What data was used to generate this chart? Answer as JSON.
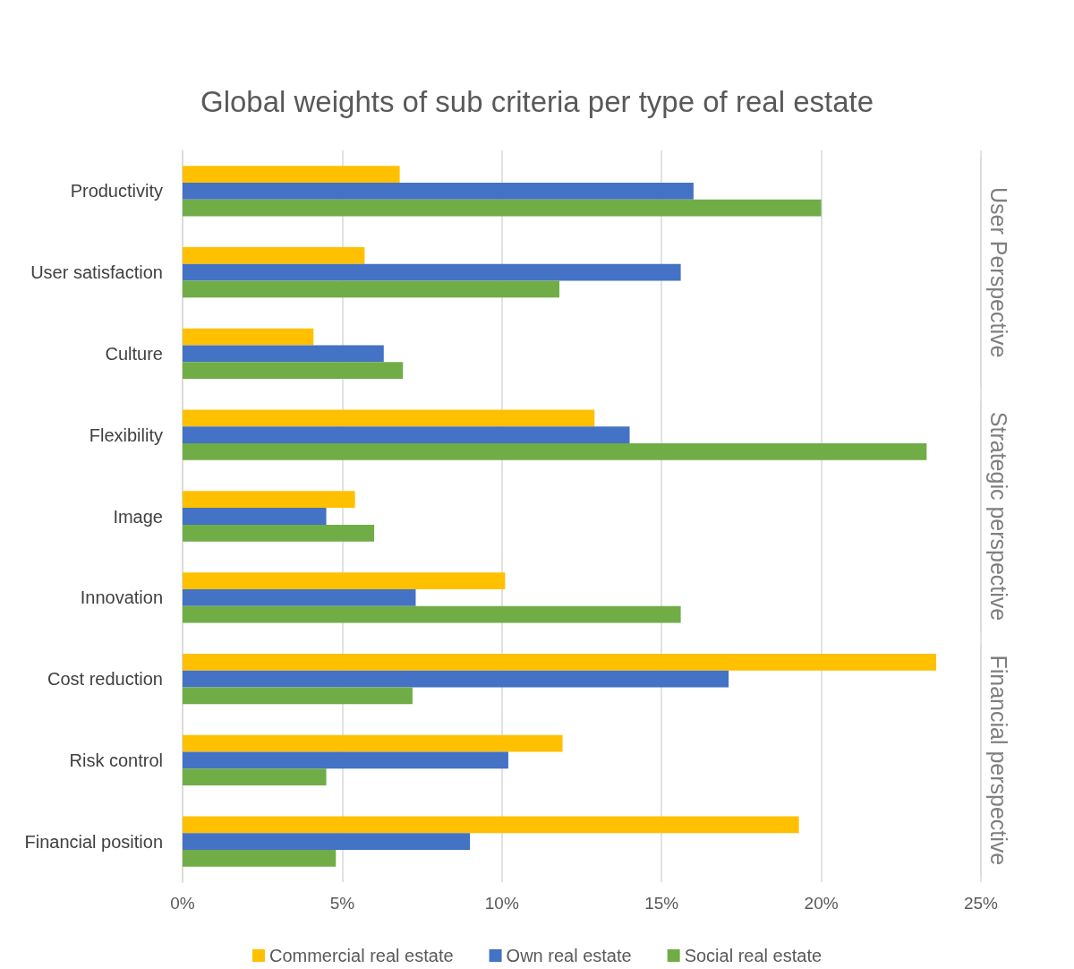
{
  "chart_data": {
    "type": "bar",
    "orientation": "horizontal",
    "title": "Global weights of sub criteria per type of real estate",
    "categories": [
      "Productivity",
      "User satisfaction",
      "Culture",
      "Flexibility",
      "Image",
      "Innovation",
      "Cost reduction",
      "Risk control",
      "Financial position"
    ],
    "series": [
      {
        "name": "Commercial real estate",
        "color": "#ffc000",
        "values": [
          6.8,
          5.7,
          4.1,
          12.9,
          5.4,
          10.1,
          23.6,
          11.9,
          19.3
        ]
      },
      {
        "name": "Own real estate",
        "color": "#4472c4",
        "values": [
          16.0,
          15.6,
          6.3,
          14.0,
          4.5,
          7.3,
          17.1,
          10.2,
          9.0
        ]
      },
      {
        "name": "Social real estate",
        "color": "#70ad47",
        "values": [
          20.0,
          11.8,
          6.9,
          23.3,
          6.0,
          15.6,
          7.2,
          4.5,
          4.8
        ]
      }
    ],
    "xlim": [
      0,
      25
    ],
    "xticks": [
      {
        "value": 0,
        "label": "0%"
      },
      {
        "value": 5,
        "label": "5%"
      },
      {
        "value": 10,
        "label": "10%"
      },
      {
        "value": 15,
        "label": "15%"
      },
      {
        "value": 20,
        "label": "20%"
      },
      {
        "value": 25,
        "label": "25%"
      }
    ],
    "grid": "x",
    "legend": "bottom",
    "annotations": [
      "User Perspective",
      "Strategic perspective",
      "Financial perspective"
    ]
  }
}
